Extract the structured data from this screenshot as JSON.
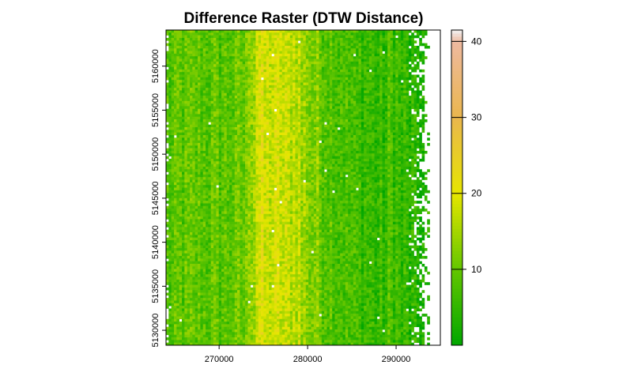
{
  "chart_data": {
    "type": "heatmap",
    "title": "Difference Raster (DTW Distance)",
    "xlabel": "",
    "ylabel": "",
    "xlim": [
      264000,
      295000
    ],
    "ylim": [
      5128300,
      5164100
    ],
    "raster_extent": {
      "xmin": 264000,
      "xmax": 293800,
      "ymin": 5128300,
      "ymax": 5164100
    },
    "x_ticks": [
      270000,
      280000,
      290000
    ],
    "x_tick_labels": [
      "270000",
      "280000",
      "290000"
    ],
    "y_ticks": [
      5130000,
      5135000,
      5140000,
      5145000,
      5150000,
      5155000,
      5160000
    ],
    "y_tick_labels": [
      "5130000",
      "5135000",
      "5140000",
      "5145000",
      "5150000",
      "5155000",
      "5160000"
    ],
    "column_mean_profile": {
      "x_bin_start": [
        264000,
        265000,
        266000,
        267000,
        268000,
        269000,
        270000,
        271000,
        272000,
        273000,
        274000,
        275000,
        276000,
        277000,
        278000,
        279000,
        280000,
        281000,
        282000,
        283000,
        284000,
        285000,
        286000,
        287000,
        288000,
        289000,
        290000,
        291000,
        292000,
        293000
      ],
      "mean_value": [
        8,
        9,
        9,
        9,
        9,
        9,
        9,
        9,
        10,
        15,
        19,
        18,
        18,
        17,
        17,
        14,
        12,
        10,
        9,
        8,
        7,
        6,
        6,
        5,
        5,
        7,
        5,
        4,
        3,
        3
      ]
    },
    "na_cells": "scattered near left edge and right edge (x > 291000)",
    "legend": {
      "placement": "right",
      "range": [
        0,
        41.5
      ],
      "ticks": [
        10,
        20,
        30,
        40
      ],
      "tick_labels": [
        "10",
        "20",
        "30",
        "40"
      ],
      "palette": "terrain",
      "colors": [
        "#00A600",
        "#63C600",
        "#E6E600",
        "#EAB64E",
        "#EEB99F",
        "#F2F2F2"
      ]
    }
  }
}
